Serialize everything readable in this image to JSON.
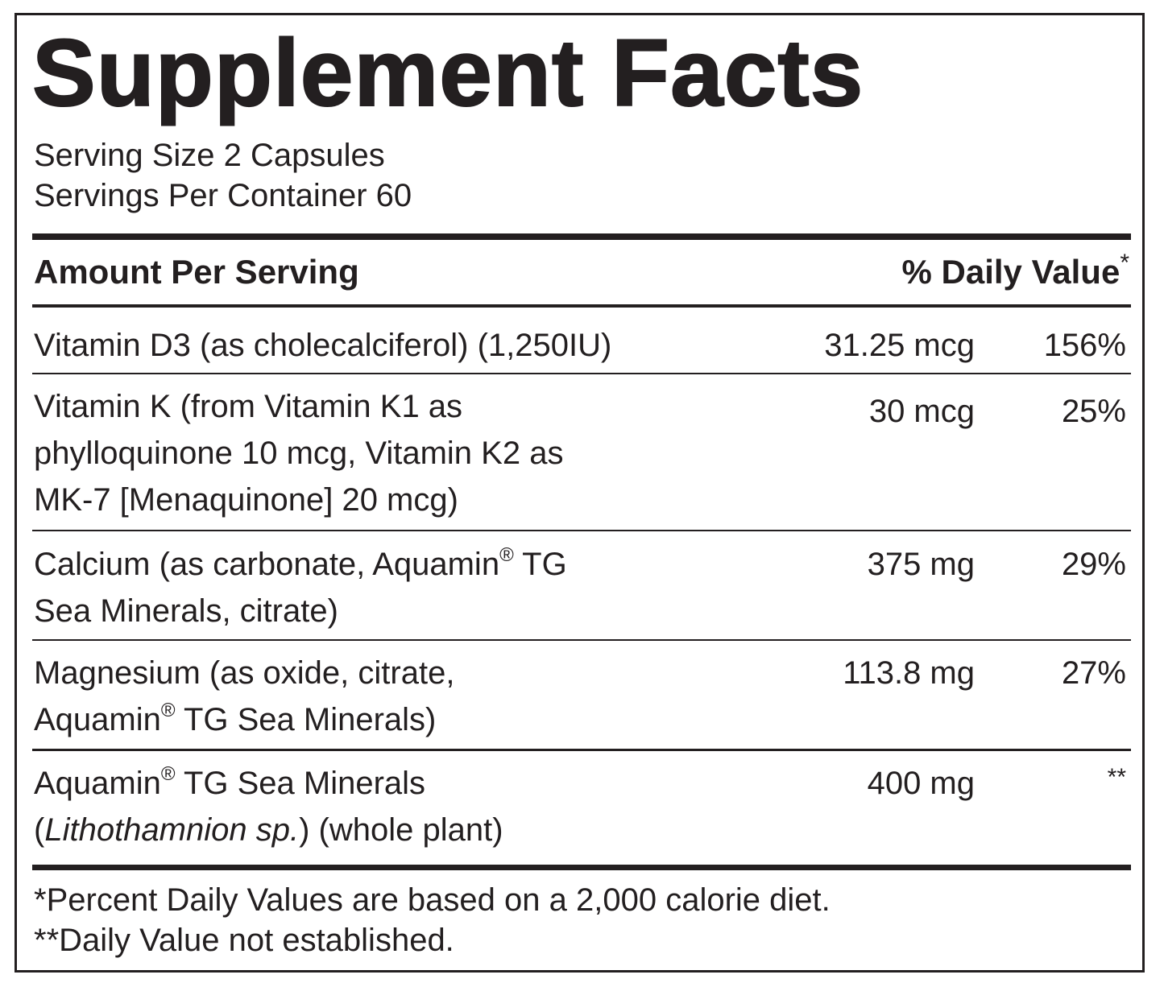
{
  "label": {
    "title": "Supplement Facts",
    "serving_size": "Serving Size 2 Capsules",
    "servings_per_container": "Servings Per Container 60",
    "header_amount": "Amount Per Serving",
    "header_dv": "% Daily Value",
    "header_dv_mark": "*",
    "registered_mark": "®",
    "nutrients": [
      {
        "lines": [
          "Vitamin D3 (as cholecalciferol) (1,250IU)"
        ],
        "amount": "31.25 mcg",
        "dv": "156%"
      },
      {
        "lines": [
          "Vitamin K (from Vitamin K1 as",
          "phylloquinone 10 mcg, Vitamin K2 as",
          "MK-7 [Menaquinone] 20 mcg)"
        ],
        "amount": "30 mcg",
        "dv": "25%"
      },
      {
        "line1_before": "Calcium (as carbonate, Aquamin",
        "line1_after": " TG",
        "line2": "Sea Minerals, citrate)",
        "amount": "375 mg",
        "dv": "29%"
      },
      {
        "line1": "Magnesium (as oxide, citrate,",
        "line2_before": "Aquamin",
        "line2_after": " TG Sea Minerals)",
        "amount": "113.8 mg",
        "dv": "27%"
      },
      {
        "line1_before": "Aquamin",
        "line1_after": " TG Sea Minerals",
        "line2_open": "(",
        "line2_italic": "Lithothamnion sp.",
        "line2_after": ") (whole plant)",
        "amount": "400 mg",
        "dv": "**"
      }
    ],
    "footnotes": [
      "*Percent Daily Values are based on a 2,000 calorie diet.",
      "**Daily Value not established."
    ]
  }
}
